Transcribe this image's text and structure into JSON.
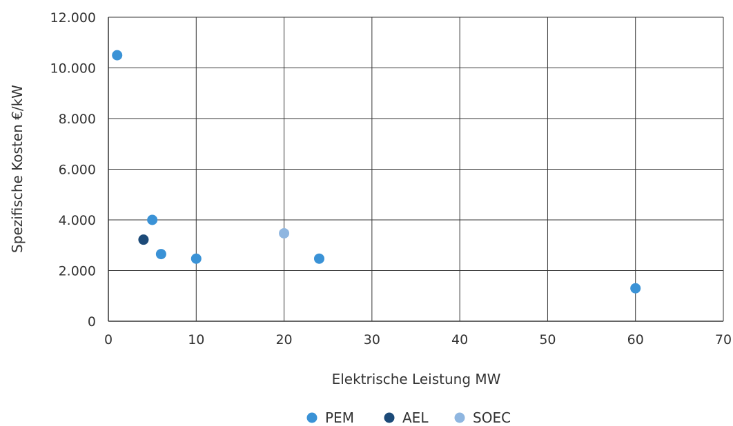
{
  "chart_data": {
    "type": "scatter",
    "title": "",
    "xlabel": "Elektrische Leistung MW",
    "ylabel": "Spezifische Kosten €/kW",
    "xlim": [
      0,
      70
    ],
    "ylim": [
      0,
      12000
    ],
    "x_ticks": [
      0,
      10,
      20,
      30,
      40,
      50,
      60,
      70
    ],
    "x_tick_labels": [
      "0",
      "10",
      "20",
      "30",
      "40",
      "50",
      "60",
      "70"
    ],
    "y_ticks": [
      0,
      2000,
      4000,
      6000,
      8000,
      10000,
      12000
    ],
    "y_tick_labels": [
      "0",
      "2.000",
      "4.000",
      "6.000",
      "8.000",
      "10.000",
      "12.000"
    ],
    "grid": true,
    "legend_position": "bottom",
    "series": [
      {
        "name": "PEM",
        "color": "#3a92d6",
        "points": [
          {
            "x": 1,
            "y": 10500
          },
          {
            "x": 5,
            "y": 4000
          },
          {
            "x": 6,
            "y": 2650
          },
          {
            "x": 10,
            "y": 2470
          },
          {
            "x": 24,
            "y": 2470
          },
          {
            "x": 60,
            "y": 1300
          }
        ]
      },
      {
        "name": "AEL",
        "color": "#1c4a78",
        "points": [
          {
            "x": 4,
            "y": 3220
          }
        ]
      },
      {
        "name": "SOEC",
        "color": "#8fb6e0",
        "points": [
          {
            "x": 20,
            "y": 3470
          }
        ]
      }
    ]
  }
}
